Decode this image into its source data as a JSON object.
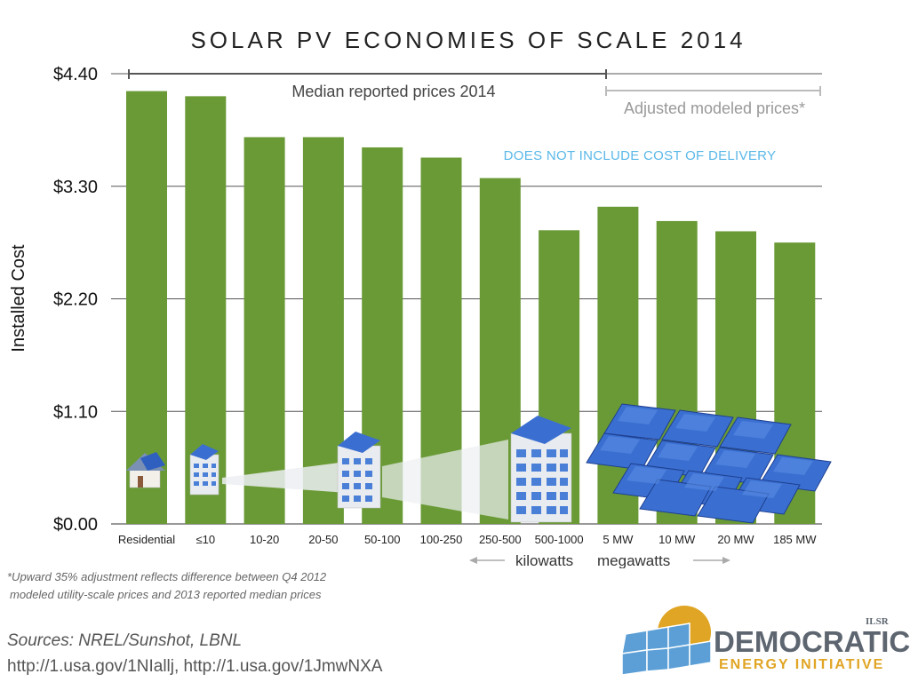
{
  "chart_data": {
    "type": "bar",
    "title": "SOLAR PV ECONOMIES OF SCALE 2014",
    "ylabel": "Installed Cost",
    "ylim": [
      0,
      4.4
    ],
    "yticks": [
      "$0.00",
      "$1.10",
      "$2.20",
      "$3.30",
      "$4.40"
    ],
    "ytick_values": [
      0,
      1.1,
      2.2,
      3.3,
      4.4
    ],
    "grid": true,
    "categories": [
      "Residential",
      "≤10",
      "10-20",
      "20-50",
      "50-100",
      "100-250",
      "250-500",
      "500-1000",
      "5 MW",
      "10 MW",
      "20 MW",
      "185 MW"
    ],
    "values": [
      4.23,
      4.18,
      3.78,
      3.78,
      3.68,
      3.58,
      3.38,
      2.87,
      3.1,
      2.96,
      2.86,
      2.75
    ],
    "bar_color": "#6a9a36",
    "annotations": {
      "median_label": "Median reported prices 2014",
      "adjusted_label": "Adjusted modeled prices*",
      "note": "DOES NOT INCLUDE COST OF DELIVERY",
      "kilowatts_label": "kilowatts",
      "megawatts_label": "megawatts"
    }
  },
  "footnote": {
    "line1": "*Upward 35% adjustment reflects difference between Q4 2012",
    "line2": "modeled utility-scale prices and 2013 reported median prices"
  },
  "sources": {
    "line1": "Sources: NREL/Sunshot, LBNL",
    "line2": "http://1.usa.gov/1NIallj, http://1.usa.gov/1JmwNXA"
  },
  "logo": {
    "word1": "DEMOCRATIC",
    "word2": "ENERGY INITIATIVE",
    "org": "ILSR"
  },
  "colors": {
    "bar": "#6a9a36",
    "note": "#5ab8e8",
    "logo_gold": "#e0a524",
    "logo_gray": "#5d6670",
    "panel_blue": "#3a6fd1"
  }
}
